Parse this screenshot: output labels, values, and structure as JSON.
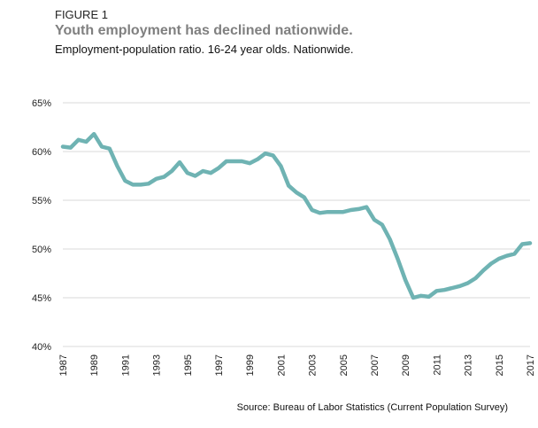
{
  "header": {
    "figure_label": "FIGURE 1",
    "title": "Youth employment has declined nationwide.",
    "subtitle": "Employment-population ratio. 16-24 year olds. Nationwide."
  },
  "source": "Source: Bureau of Labor Statistics (Current Population Survey)",
  "chart_data": {
    "type": "line",
    "title": "Youth employment has declined nationwide.",
    "xlabel": "",
    "ylabel": "",
    "xlim": [
      1987,
      2017
    ],
    "ylim": [
      40,
      65
    ],
    "yticks": [
      40,
      45,
      50,
      55,
      60,
      65
    ],
    "ytick_labels": [
      "40%",
      "45%",
      "50%",
      "55%",
      "60%",
      "65%"
    ],
    "xticks": [
      1987,
      1989,
      1991,
      1993,
      1995,
      1997,
      1999,
      2001,
      2003,
      2005,
      2007,
      2009,
      2011,
      2013,
      2015,
      2017
    ],
    "xtick_labels": [
      "1987",
      "1989",
      "1991",
      "1993",
      "1995",
      "1997",
      "1999",
      "2001",
      "2003",
      "2005",
      "2007",
      "2009",
      "2011",
      "2013",
      "2015",
      "2017"
    ],
    "grid": true,
    "color": "#6fb3b3",
    "series": [
      {
        "name": "Employment-population ratio, 16-24",
        "x": [
          1987,
          1987.5,
          1988,
          1988.5,
          1989,
          1989.5,
          1990,
          1990.5,
          1991,
          1991.5,
          1992,
          1992.5,
          1993,
          1993.5,
          1994,
          1994.5,
          1995,
          1995.5,
          1996,
          1996.5,
          1997,
          1997.5,
          1998,
          1998.5,
          1999,
          1999.5,
          2000,
          2000.5,
          2001,
          2001.5,
          2002,
          2002.5,
          2003,
          2003.5,
          2004,
          2004.5,
          2005,
          2005.5,
          2006,
          2006.5,
          2007,
          2007.5,
          2008,
          2008.5,
          2009,
          2009.5,
          2010,
          2010.5,
          2011,
          2011.5,
          2012,
          2012.5,
          2013,
          2013.5,
          2014,
          2014.5,
          2015,
          2015.5,
          2016,
          2016.5,
          2017
        ],
        "values": [
          60.5,
          60.4,
          61.2,
          61.0,
          61.8,
          60.5,
          60.3,
          58.5,
          57.0,
          56.6,
          56.6,
          56.7,
          57.2,
          57.4,
          58.0,
          58.9,
          57.8,
          57.5,
          58.0,
          57.8,
          58.3,
          59.0,
          59.0,
          59.0,
          58.8,
          59.2,
          59.8,
          59.6,
          58.5,
          56.5,
          55.8,
          55.3,
          54.0,
          53.7,
          53.8,
          53.8,
          53.8,
          54.0,
          54.1,
          54.3,
          53.0,
          52.5,
          51.0,
          49.0,
          46.8,
          45.0,
          45.2,
          45.1,
          45.7,
          45.8,
          46.0,
          46.2,
          46.5,
          47.0,
          47.8,
          48.5,
          49.0,
          49.3,
          49.5,
          50.5,
          50.6
        ]
      }
    ]
  }
}
